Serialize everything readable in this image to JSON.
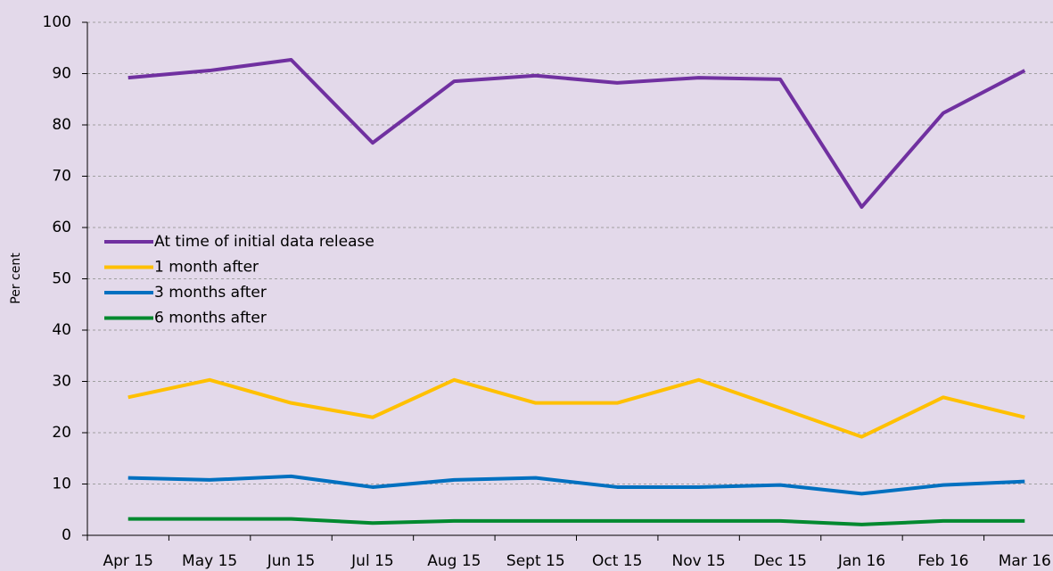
{
  "chart_data": {
    "type": "line",
    "y_label": "Per cent",
    "categories": [
      "Apr 15",
      "May 15",
      "Jun 15",
      "Jul 15",
      "Aug 15",
      "Sept 15",
      "Oct 15",
      "Nov 15",
      "Dec 15",
      "Jan 16",
      "Feb 16",
      "Mar 16"
    ],
    "series": [
      {
        "name": "At time of initial data release",
        "color": "#7030a0",
        "values": [
          89.2,
          90.6,
          92.7,
          76.5,
          88.5,
          89.6,
          88.2,
          89.2,
          88.9,
          64,
          82.3,
          90.6
        ]
      },
      {
        "name": "1 month after",
        "color": "#ffc000",
        "values": [
          26.9,
          30.3,
          25.8,
          23,
          30.3,
          25.8,
          25.8,
          30.3,
          24.8,
          19.2,
          26.9,
          23
        ]
      },
      {
        "name": "3 months after",
        "color": "#0070c0",
        "values": [
          11.2,
          10.8,
          11.5,
          9.4,
          10.8,
          11.2,
          9.4,
          9.4,
          9.8,
          8.1,
          9.8,
          10.5
        ]
      },
      {
        "name": "6 months after",
        "color": "#00892f",
        "values": [
          3.2,
          3.2,
          3.2,
          2.4,
          2.8,
          2.8,
          2.8,
          2.8,
          2.8,
          2.1,
          2.8,
          2.8
        ]
      }
    ],
    "ylim": [
      0,
      100
    ],
    "yticks": [
      0,
      10,
      20,
      30,
      40,
      50,
      60,
      70,
      80,
      90,
      100
    ],
    "grid": true,
    "legend": "left"
  }
}
